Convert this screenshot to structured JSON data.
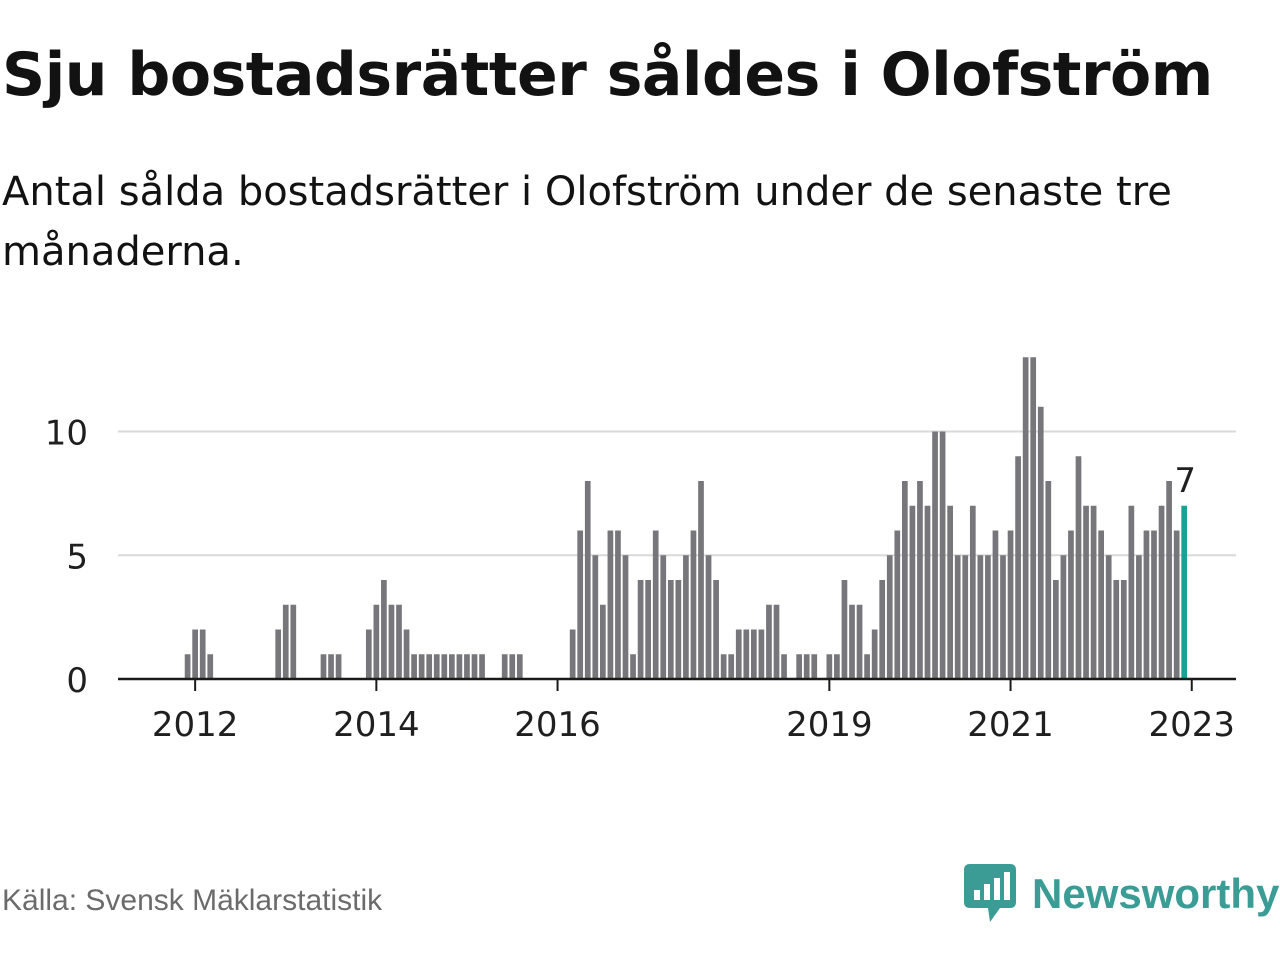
{
  "title": "Sju bostadsrätter såldes i Olofström",
  "subtitle": "Antal sålda bostadsrätter i Olofström under de senaste tre månaderna.",
  "source": "Källa: Svensk Mäklarstatistik",
  "brand": {
    "name": "Newsworthy",
    "icon": "newsworthy-logo-icon"
  },
  "colors": {
    "bar": "#77767a",
    "highlight": "#1aa095",
    "grid": "#d9d9d9",
    "axis": "#1a1a1a",
    "text": "#1f1f1f",
    "brand": "#3a9c94"
  },
  "chart_data": {
    "type": "bar",
    "x_start": "2011-10",
    "x_end": "2023-02",
    "interval": "month",
    "xtick_labels": [
      "2012",
      "2014",
      "2016",
      "2019",
      "2021",
      "2023"
    ],
    "ytick_labels": [
      "0",
      "5",
      "10"
    ],
    "ylim": [
      0,
      13
    ],
    "grid": true,
    "highlight_label": "7",
    "values": [
      0,
      0,
      1,
      2,
      2,
      1,
      0,
      0,
      0,
      0,
      0,
      0,
      0,
      0,
      2,
      3,
      3,
      0,
      0,
      0,
      1,
      1,
      1,
      0,
      0,
      0,
      2,
      3,
      4,
      3,
      3,
      2,
      1,
      1,
      1,
      1,
      1,
      1,
      1,
      1,
      1,
      1,
      0,
      0,
      1,
      1,
      1,
      0,
      0,
      0,
      0,
      0,
      0,
      2,
      6,
      8,
      5,
      3,
      6,
      6,
      5,
      1,
      4,
      4,
      6,
      5,
      4,
      4,
      5,
      6,
      8,
      5,
      4,
      1,
      1,
      2,
      2,
      2,
      2,
      3,
      3,
      1,
      0,
      1,
      1,
      1,
      0,
      1,
      1,
      4,
      3,
      3,
      1,
      2,
      4,
      5,
      6,
      8,
      7,
      8,
      7,
      10,
      10,
      7,
      5,
      5,
      7,
      5,
      5,
      6,
      5,
      6,
      9,
      13,
      13,
      11,
      8,
      4,
      5,
      6,
      9,
      7,
      7,
      6,
      5,
      4,
      4,
      7,
      5,
      6,
      6,
      7,
      8,
      6,
      7
    ]
  }
}
